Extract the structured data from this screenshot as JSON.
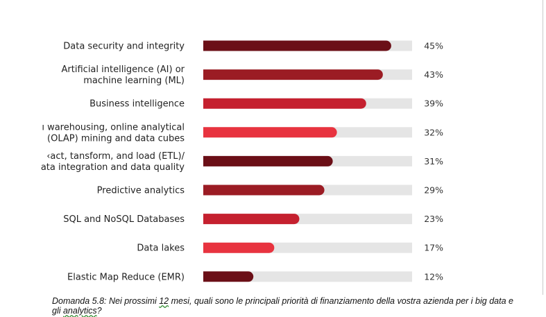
{
  "chart_data": {
    "type": "bar",
    "orientation": "horizontal",
    "categories": [
      [
        "Data security and integrity"
      ],
      [
        "Artificial intelligence (AI) or",
        "machine learning (ML)"
      ],
      [
        "Business intelligence"
      ],
      [
        "ı warehousing, online analytical",
        "(OLAP) mining and data cubes"
      ],
      [
        "‹act, tansform, and load (ETL)/",
        "ata integration and data quality"
      ],
      [
        "Predictive analytics"
      ],
      [
        "SQL and NoSQL Databases"
      ],
      [
        "Data lakes"
      ],
      [
        "Elastic Map Reduce (EMR)"
      ]
    ],
    "values": [
      45,
      43,
      39,
      32,
      31,
      29,
      23,
      17,
      12
    ],
    "value_labels": [
      "45%",
      "43%",
      "39%",
      "32%",
      "31%",
      "29%",
      "23%",
      "17%",
      "12%"
    ],
    "bar_colors": [
      "#6b0f17",
      "#9b1c24",
      "#c5202f",
      "#e8333f",
      "#6b0f17",
      "#9b1c24",
      "#c5202f",
      "#e8333f",
      "#6b0f17"
    ],
    "track_color": "#e5e5e5",
    "xlim": [
      0,
      50
    ],
    "grid": false,
    "legend": "none"
  },
  "caption": {
    "before": "Domanda 5.8: Nei prossimi ",
    "squiggle1": "12",
    "middle": " mesi, quali sono le principali priorità di finanziamento della vostra azienda per i big data e gli ",
    "squiggle2": "analytics",
    "after": "?"
  }
}
